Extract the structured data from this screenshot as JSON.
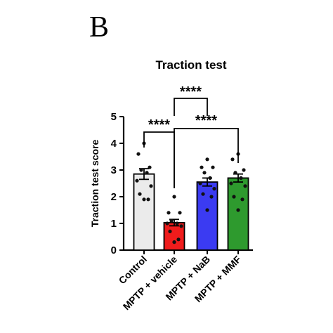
{
  "panel_label": "B",
  "chart_data": {
    "type": "bar",
    "title": "Traction test",
    "ylabel": "Traction test score",
    "xlabel": "",
    "ylim": [
      0,
      5
    ],
    "yticks": [
      0,
      1,
      2,
      3,
      4,
      5
    ],
    "categories": [
      "Control",
      "MPTP + vehicle",
      "MPTP + NaB",
      "MPTP + MMF"
    ],
    "values": [
      2.85,
      1.03,
      2.55,
      2.7
    ],
    "errors": [
      0.2,
      0.12,
      0.15,
      0.15
    ],
    "colors": [
      "#ebebeb",
      "#ef1c1c",
      "#3b3bf2",
      "#2e9a2e"
    ],
    "points": [
      [
        4.0,
        3.6,
        3.1,
        3.0,
        2.9,
        2.6,
        2.4,
        2.1,
        1.9,
        1.9
      ],
      [
        2.0,
        1.4,
        1.4,
        1.1,
        1.0,
        1.0,
        0.9,
        0.7,
        0.4,
        0.3
      ],
      [
        3.4,
        3.1,
        3.1,
        2.9,
        2.7,
        2.5,
        2.3,
        2.1,
        2.0,
        1.5
      ],
      [
        3.6,
        3.4,
        3.0,
        2.9,
        2.7,
        2.5,
        2.4,
        2.0,
        1.9,
        1.5
      ]
    ],
    "significance": [
      {
        "from": 0,
        "to": 1,
        "label": "****"
      },
      {
        "from": 1,
        "to": 3,
        "label": "****"
      },
      {
        "from": 1,
        "to": 2,
        "label": "****"
      }
    ]
  }
}
